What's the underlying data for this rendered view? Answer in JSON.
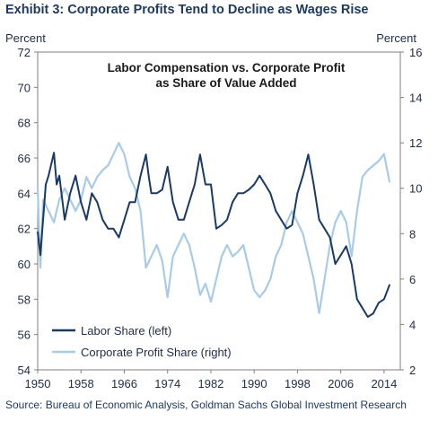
{
  "exhibit_title": "Exhibit 3: Corporate Profits Tend to Decline as Wages Rise",
  "source": "Source: Bureau of Economic Analysis, Goldman Sachs Global Investment Research",
  "colors": {
    "labor": "#1a3a66",
    "profit": "#a8cbe8",
    "text": "#1f2d46",
    "title": "#1f3a60"
  },
  "chart_data": {
    "type": "line",
    "title": "Labor Compensation vs. Corporate Profit\nas Share of Value Added",
    "title_lines": [
      "Labor Compensation vs. Corporate Profit",
      "as Share of Value Added"
    ],
    "ylabel_left": "Percent",
    "ylabel_right": "Percent",
    "xlim": [
      1950,
      2017
    ],
    "ylim_left": [
      54,
      72
    ],
    "ylim_right": [
      2,
      16
    ],
    "x_ticks": [
      "1950",
      "1958",
      "1966",
      "1974",
      "1982",
      "1990",
      "1998",
      "2006",
      "2014"
    ],
    "y_ticks_left": [
      "54",
      "56",
      "58",
      "60",
      "62",
      "64",
      "66",
      "68",
      "70",
      "72"
    ],
    "y_ticks_right": [
      "2",
      "4",
      "6",
      "8",
      "10",
      "12",
      "14",
      "16"
    ],
    "grid": false,
    "legend_position": "bottom-left",
    "series": [
      {
        "name": "Labor Share (left)",
        "axis": "left",
        "x": [
          1950,
          1950.5,
          1951,
          1951.5,
          1952,
          1953,
          1953.5,
          1954,
          1955,
          1956,
          1957,
          1958,
          1959,
          1960,
          1961,
          1962,
          1963,
          1964,
          1965,
          1966,
          1967,
          1968,
          1969,
          1970,
          1970.5,
          1971,
          1972,
          1973,
          1974,
          1975,
          1976,
          1977,
          1978,
          1979,
          1980,
          1981,
          1982,
          1983,
          1984,
          1985,
          1986,
          1987,
          1988,
          1989,
          1990,
          1991,
          1992,
          1993,
          1994,
          1995,
          1996,
          1997,
          1998,
          1999,
          2000,
          2001,
          2002,
          2003,
          2004,
          2005,
          2006,
          2007,
          2008,
          2009,
          2010,
          2011,
          2012,
          2013,
          2014,
          2015
        ],
        "values": [
          61.8,
          60.5,
          62.5,
          64.5,
          65,
          66.3,
          64.5,
          65,
          62.5,
          64,
          65,
          63.5,
          62.5,
          64,
          63.5,
          62.5,
          62,
          62,
          61.5,
          62.5,
          63.5,
          63.5,
          65,
          66.2,
          65,
          64,
          64,
          64.2,
          65.5,
          63.5,
          62.5,
          62.5,
          63.5,
          64.5,
          66.2,
          64.5,
          64.5,
          62,
          62.2,
          62.5,
          63.5,
          64,
          64,
          64.2,
          64.5,
          65,
          64.5,
          64,
          63,
          62.5,
          62,
          62.2,
          64,
          65,
          66.2,
          64.5,
          62.5,
          62,
          61.5,
          60,
          60.5,
          61,
          60,
          58,
          57.5,
          57,
          57.2,
          57.8,
          58,
          58.8
        ]
      },
      {
        "name": "Corporate Profit Share (right)",
        "axis": "right",
        "x": [
          1950,
          1950.5,
          1951,
          1952,
          1953,
          1954,
          1955,
          1956,
          1957,
          1958,
          1959,
          1960,
          1961,
          1962,
          1963,
          1964,
          1965,
          1966,
          1967,
          1968,
          1969,
          1970,
          1971,
          1972,
          1973,
          1974,
          1975,
          1976,
          1977,
          1978,
          1979,
          1980,
          1981,
          1982,
          1983,
          1984,
          1985,
          1986,
          1987,
          1988,
          1989,
          1990,
          1991,
          1992,
          1993,
          1994,
          1995,
          1996,
          1997,
          1998,
          1999,
          2000,
          2001,
          2002,
          2003,
          2004,
          2005,
          2006,
          2007,
          2008,
          2009,
          2010,
          2011,
          2012,
          2013,
          2014,
          2015
        ],
        "values": [
          10,
          6.5,
          9.5,
          9,
          8.5,
          9.5,
          10,
          9.5,
          9,
          9.5,
          10.5,
          10,
          10.5,
          10.8,
          11,
          11.5,
          12,
          11.5,
          10.5,
          10,
          9,
          6.5,
          7,
          7.5,
          6.8,
          5.2,
          7,
          7.5,
          8,
          7.5,
          6.5,
          5.3,
          5.8,
          5,
          6,
          7,
          7.5,
          7,
          7.2,
          7.5,
          6.5,
          5.5,
          5.2,
          5.5,
          6,
          7,
          7.5,
          8.5,
          9,
          8.5,
          8,
          7,
          6,
          4.5,
          6,
          7.5,
          8.5,
          9,
          8.5,
          7,
          9,
          10.5,
          10.8,
          11,
          11.2,
          11.5,
          10.3
        ]
      }
    ]
  }
}
